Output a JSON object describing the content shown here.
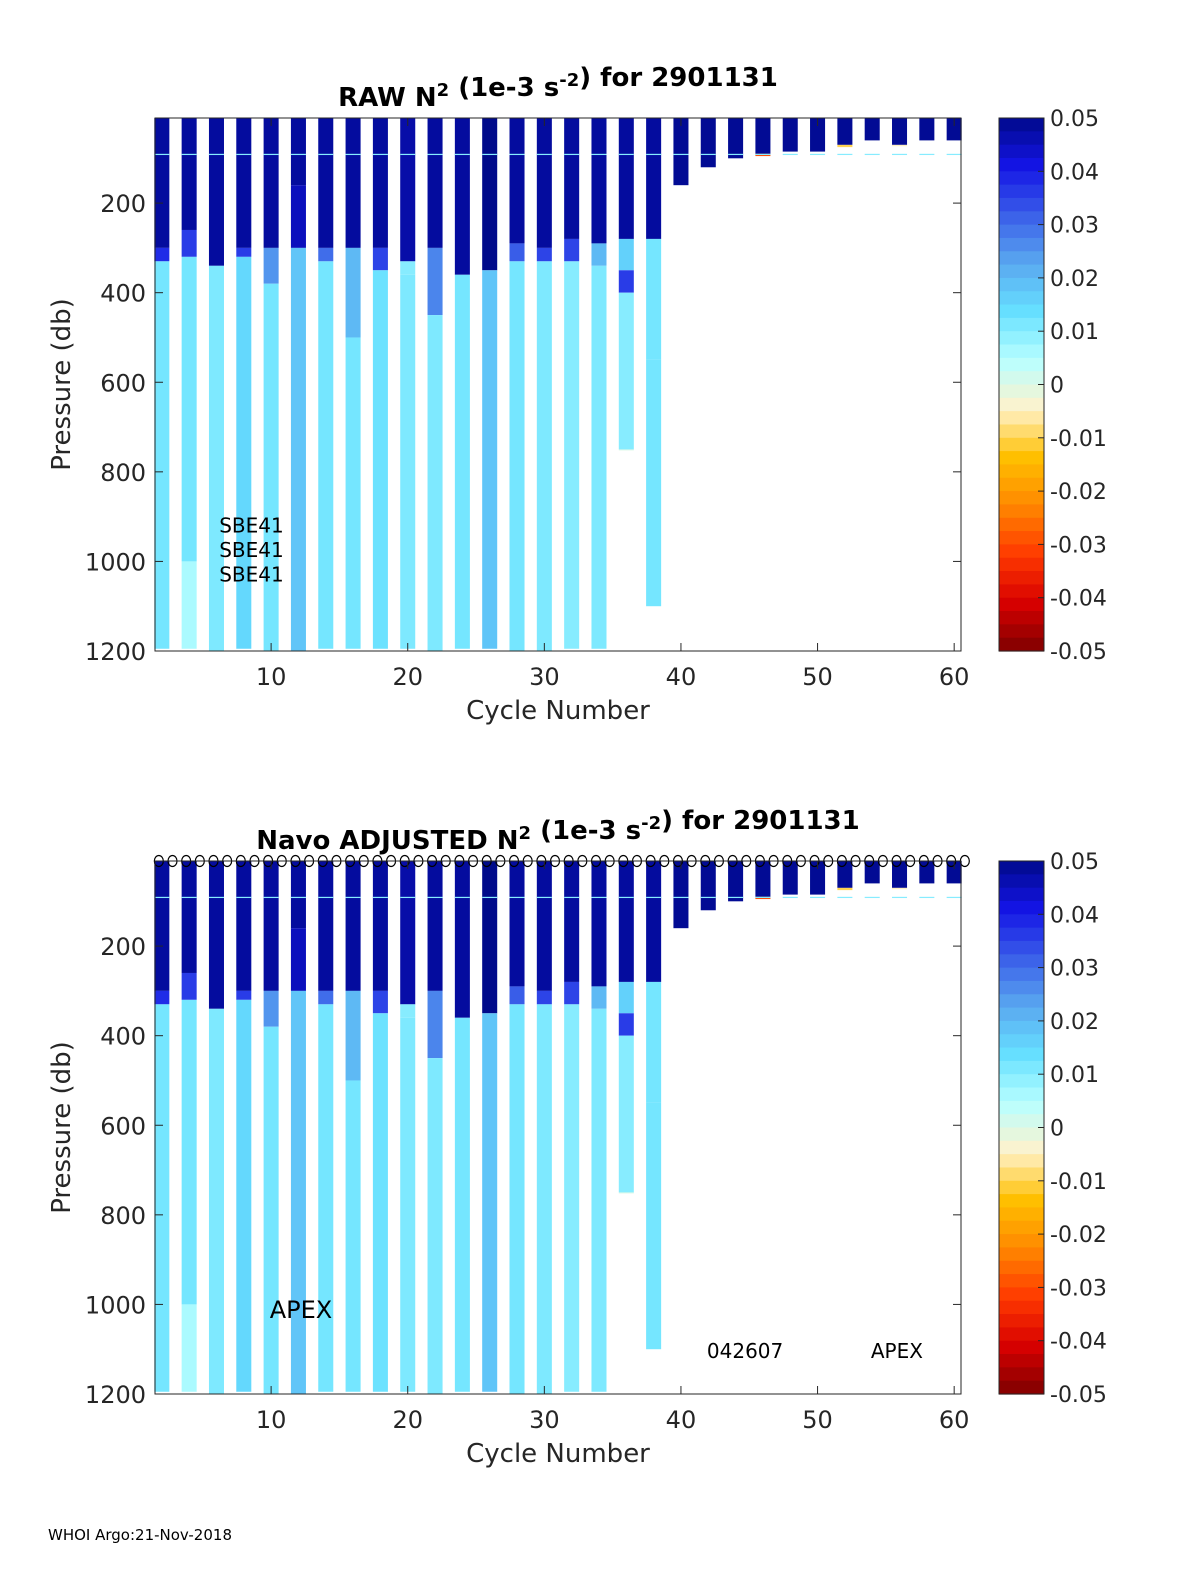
{
  "footer": "WHOI Argo:21-Nov-2018",
  "colormap": {
    "stops": [
      "#7f0000",
      "#d80000",
      "#ff3a00",
      "#ff8800",
      "#ffc000",
      "#fff2cc",
      "#b8ffff",
      "#66e0ff",
      "#5aa8f0",
      "#3a5ee8",
      "#1414e6",
      "#000a8a"
    ],
    "nodata": "#ffffff"
  },
  "chart_data": [
    {
      "type": "heatmap",
      "id": "raw",
      "title": {
        "main": "RAW N",
        "sup1": "2",
        "mid": " (1e-3 s",
        "sup2": "-2",
        "end": ") for 2901131"
      },
      "xlabel": "Cycle Number",
      "ylabel": "Pressure (db)",
      "xlim": [
        1.5,
        60.5
      ],
      "ylim": [
        10,
        1200
      ],
      "xticks": [
        10,
        20,
        30,
        40,
        50,
        60
      ],
      "yticks": [
        200,
        400,
        600,
        800,
        1000,
        1200
      ],
      "colorbar": {
        "clim": [
          -0.05,
          0.05
        ],
        "ticks": [
          "0.05",
          "0.04",
          "0.03",
          "0.02",
          "0.01",
          "0",
          "-0.01",
          "-0.02",
          "-0.03",
          "-0.04",
          "-0.05"
        ]
      },
      "annotations": [
        {
          "text": "SBE41",
          "x": 6.2,
          "y": 935
        },
        {
          "text": "SBE41",
          "x": 6.2,
          "y": 990
        },
        {
          "text": "SBE41",
          "x": 6.2,
          "y": 1045
        }
      ],
      "marker_row": false,
      "profiles": [
        {
          "cycle": 2,
          "segments": [
            [
              10,
              300,
              0.048
            ],
            [
              300,
              330,
              0.038
            ],
            [
              330,
              1195,
              0.012
            ]
          ]
        },
        {
          "cycle": 4,
          "segments": [
            [
              10,
              260,
              0.048
            ],
            [
              260,
              320,
              0.036
            ],
            [
              320,
              1000,
              0.012
            ],
            [
              1000,
              1195,
              0.006
            ]
          ]
        },
        {
          "cycle": 6,
          "segments": [
            [
              10,
              340,
              0.048
            ],
            [
              340,
              1200,
              0.011
            ]
          ]
        },
        {
          "cycle": 8,
          "segments": [
            [
              10,
              300,
              0.048
            ],
            [
              300,
              320,
              0.036
            ],
            [
              320,
              1195,
              0.015
            ]
          ]
        },
        {
          "cycle": 10,
          "segments": [
            [
              10,
              300,
              0.048
            ],
            [
              300,
              380,
              0.025
            ],
            [
              380,
              1200,
              0.012
            ]
          ]
        },
        {
          "cycle": 12,
          "segments": [
            [
              10,
              160,
              0.048
            ],
            [
              160,
              300,
              0.045
            ],
            [
              300,
              1200,
              0.018
            ]
          ]
        },
        {
          "cycle": 14,
          "segments": [
            [
              10,
              300,
              0.048
            ],
            [
              300,
              330,
              0.03
            ],
            [
              330,
              1195,
              0.012
            ]
          ]
        },
        {
          "cycle": 16,
          "segments": [
            [
              10,
              300,
              0.048
            ],
            [
              300,
              500,
              0.02
            ],
            [
              500,
              1195,
              0.012
            ]
          ]
        },
        {
          "cycle": 18,
          "segments": [
            [
              10,
              300,
              0.048
            ],
            [
              300,
              350,
              0.035
            ],
            [
              350,
              1195,
              0.013
            ]
          ]
        },
        {
          "cycle": 20,
          "segments": [
            [
              10,
              330,
              0.047
            ],
            [
              330,
              360,
              0.01
            ],
            [
              360,
              1195,
              0.011
            ]
          ]
        },
        {
          "cycle": 22,
          "segments": [
            [
              10,
              300,
              0.048
            ],
            [
              300,
              450,
              0.027
            ],
            [
              450,
              1200,
              0.011
            ]
          ]
        },
        {
          "cycle": 24,
          "segments": [
            [
              10,
              360,
              0.048
            ],
            [
              360,
              1195,
              0.012
            ]
          ]
        },
        {
          "cycle": 26,
          "segments": [
            [
              10,
              350,
              0.05
            ],
            [
              350,
              1195,
              0.018
            ]
          ]
        },
        {
          "cycle": 28,
          "segments": [
            [
              10,
              290,
              0.048
            ],
            [
              290,
              330,
              0.032
            ],
            [
              330,
              1200,
              0.012
            ]
          ]
        },
        {
          "cycle": 30,
          "segments": [
            [
              10,
              300,
              0.048
            ],
            [
              300,
              330,
              0.035
            ],
            [
              330,
              1200,
              0.011
            ]
          ]
        },
        {
          "cycle": 32,
          "segments": [
            [
              10,
              280,
              0.048
            ],
            [
              280,
              330,
              0.035
            ],
            [
              330,
              1195,
              0.01
            ]
          ]
        },
        {
          "cycle": 34,
          "segments": [
            [
              10,
              290,
              0.048
            ],
            [
              290,
              340,
              0.02
            ],
            [
              340,
              1195,
              0.011
            ]
          ]
        },
        {
          "cycle": 36,
          "segments": [
            [
              10,
              280,
              0.048
            ],
            [
              280,
              350,
              0.016
            ],
            [
              350,
              400,
              0.036
            ],
            [
              400,
              750,
              0.01
            ],
            [
              750,
              750,
              0
            ]
          ]
        },
        {
          "cycle": 38,
          "segments": [
            [
              10,
              280,
              0.048
            ],
            [
              280,
              550,
              0.012
            ],
            [
              550,
              1100,
              0.012
            ]
          ]
        },
        {
          "cycle": 40,
          "segments": [
            [
              10,
              160,
              0.049
            ]
          ]
        },
        {
          "cycle": 42,
          "segments": [
            [
              10,
              120,
              0.049
            ]
          ]
        },
        {
          "cycle": 44,
          "segments": [
            [
              10,
              100,
              0.049
            ]
          ]
        },
        {
          "cycle": 46,
          "segments": [
            [
              10,
              90,
              0.049
            ],
            [
              90,
              95,
              -0.03
            ]
          ]
        },
        {
          "cycle": 48,
          "segments": [
            [
              10,
              85,
              0.049
            ]
          ]
        },
        {
          "cycle": 50,
          "segments": [
            [
              10,
              85,
              0.049
            ]
          ]
        },
        {
          "cycle": 52,
          "segments": [
            [
              10,
              70,
              0.049
            ],
            [
              70,
              75,
              -0.01
            ]
          ]
        },
        {
          "cycle": 54,
          "segments": [
            [
              10,
              60,
              0.049
            ]
          ]
        },
        {
          "cycle": 56,
          "segments": [
            [
              10,
              70,
              0.049
            ],
            [
              70,
              73,
              -0.005
            ]
          ]
        },
        {
          "cycle": 58,
          "segments": [
            [
              10,
              60,
              0.049
            ]
          ]
        },
        {
          "cycle": 60,
          "segments": [
            [
              10,
              60,
              0.049
            ]
          ]
        }
      ]
    },
    {
      "type": "heatmap",
      "id": "adjusted",
      "title": {
        "main": "Navo  ADJUSTED N",
        "sup1": "2",
        "mid": " (1e-3 s",
        "sup2": "-2",
        "end": ") for 2901131"
      },
      "xlabel": "Cycle Number",
      "ylabel": "Pressure (db)",
      "xlim": [
        1.5,
        60.5
      ],
      "ylim": [
        10,
        1200
      ],
      "xticks": [
        10,
        20,
        30,
        40,
        50,
        60
      ],
      "yticks": [
        200,
        400,
        600,
        800,
        1000,
        1200
      ],
      "colorbar": {
        "clim": [
          -0.05,
          0.05
        ],
        "ticks": [
          "0.05",
          "0.04",
          "0.03",
          "0.02",
          "0.01",
          "0",
          "-0.01",
          "-0.02",
          "-0.03",
          "-0.04",
          "-0.05"
        ]
      },
      "annotations": [
        {
          "text": "APEX",
          "x": 9.9,
          "y": 1030,
          "size": "large"
        },
        {
          "text": "042607",
          "x": 41.9,
          "y": 1120
        },
        {
          "text": "APEX",
          "x": 53.9,
          "y": 1120
        }
      ],
      "marker_row": true,
      "marker_glyph": "o",
      "profiles": "same_as_raw"
    }
  ]
}
